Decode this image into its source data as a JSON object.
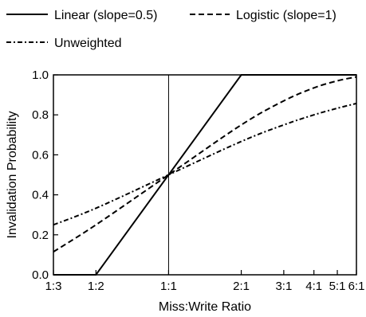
{
  "chart_data": {
    "type": "line",
    "xlabel": "Miss:Write Ratio",
    "ylabel": "Invalidation Probability",
    "x_ticks": [
      {
        "pos": -1.585,
        "label": "1:3"
      },
      {
        "pos": -1,
        "label": "1:2"
      },
      {
        "pos": 0,
        "label": "1:1"
      },
      {
        "pos": 1,
        "label": "2:1"
      },
      {
        "pos": 1.585,
        "label": "3:1"
      },
      {
        "pos": 2,
        "label": "4:1"
      },
      {
        "pos": 2.322,
        "label": "5:1"
      },
      {
        "pos": 2.585,
        "label": "6:1"
      }
    ],
    "x_scale": "log2 of the miss:write ratio",
    "xlim": [
      -1.585,
      2.585
    ],
    "ylim": [
      0,
      1
    ],
    "y_ticks": [
      {
        "value": 0.0,
        "label": "0.0"
      },
      {
        "value": 0.2,
        "label": "0.2"
      },
      {
        "value": 0.4,
        "label": "0.4"
      },
      {
        "value": 0.6,
        "label": "0.6"
      },
      {
        "value": 0.8,
        "label": "0.8"
      },
      {
        "value": 1.0,
        "label": "1.0"
      }
    ],
    "grid": false,
    "legend_position": "top, above plot",
    "reference_line_x": 0,
    "series": [
      {
        "name": "Linear (slope=0.5)",
        "style": "solid",
        "x": [
          -1.585,
          -1,
          1,
          2.585
        ],
        "y": [
          0,
          0,
          1,
          1
        ]
      },
      {
        "name": "Logistic (slope=1)",
        "style": "dashed",
        "x": [
          -1.585,
          -1,
          0,
          1,
          1.585,
          2,
          2.322,
          2.585
        ],
        "y": [
          0.115,
          0.25,
          0.5,
          0.75,
          0.87,
          0.935,
          0.97,
          0.99
        ]
      },
      {
        "name": "Unweighted",
        "style": "dash-dot",
        "x": [
          -1.585,
          -1,
          0,
          1,
          1.585,
          2,
          2.322,
          2.585
        ],
        "y": [
          0.25,
          0.333,
          0.5,
          0.667,
          0.75,
          0.8,
          0.833,
          0.857
        ]
      }
    ]
  }
}
